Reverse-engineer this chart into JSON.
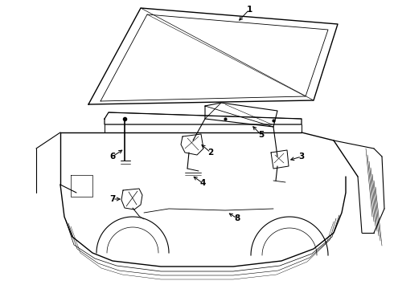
{
  "background_color": "#ffffff",
  "line_color": "#000000",
  "fig_width": 4.9,
  "fig_height": 3.6,
  "dpi": 100,
  "label_fontsize": 7.5
}
